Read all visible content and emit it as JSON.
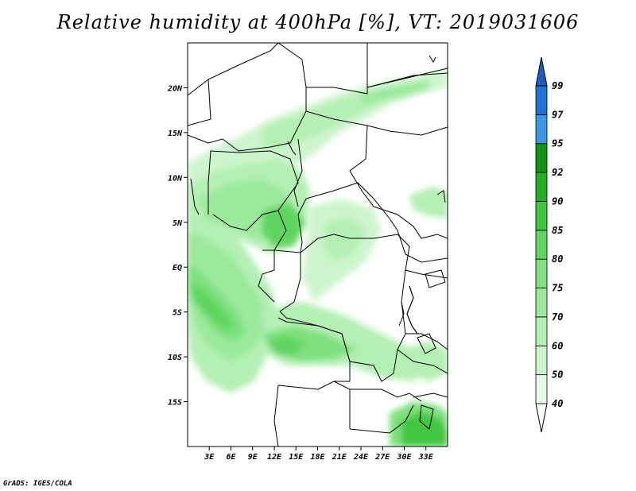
{
  "title": "Relative humidity at 400hPa [%], VT: 2019031606",
  "credit": "GrADS: IGES/COLA",
  "map": {
    "lon_range": [
      0,
      36
    ],
    "lat_range": [
      -20,
      25
    ],
    "lat_ticks": [
      {
        "value": 20,
        "label": "20N"
      },
      {
        "value": 15,
        "label": "15N"
      },
      {
        "value": 10,
        "label": "10N"
      },
      {
        "value": 5,
        "label": "5N"
      },
      {
        "value": 0,
        "label": "EQ"
      },
      {
        "value": -5,
        "label": "5S"
      },
      {
        "value": -10,
        "label": "10S"
      },
      {
        "value": -15,
        "label": "15S"
      }
    ],
    "lon_ticks": [
      {
        "value": 3,
        "label": "3E"
      },
      {
        "value": 6,
        "label": "6E"
      },
      {
        "value": 9,
        "label": "9E"
      },
      {
        "value": 12,
        "label": "12E"
      },
      {
        "value": 15,
        "label": "15E"
      },
      {
        "value": 18,
        "label": "18E"
      },
      {
        "value": 21,
        "label": "21E"
      },
      {
        "value": 24,
        "label": "24E"
      },
      {
        "value": 27,
        "label": "27E"
      },
      {
        "value": 30,
        "label": "30E"
      },
      {
        "value": 33,
        "label": "33E"
      }
    ]
  },
  "colorbar": {
    "levels": [
      {
        "label": "40",
        "color": "#e6fae6"
      },
      {
        "label": "50",
        "color": "#cdf5cd"
      },
      {
        "label": "60",
        "color": "#b4f0b4"
      },
      {
        "label": "70",
        "color": "#9be99b"
      },
      {
        "label": "75",
        "color": "#7ee07e"
      },
      {
        "label": "80",
        "color": "#5fd55f"
      },
      {
        "label": "85",
        "color": "#3fc63f"
      },
      {
        "label": "90",
        "color": "#22b022"
      },
      {
        "label": "92",
        "color": "#109610"
      },
      {
        "label": "95",
        "color": "#3c95e6"
      },
      {
        "label": "97",
        "color": "#1f73d6"
      },
      {
        "label": "99",
        "color": "#1f5cc4"
      }
    ],
    "below_color": "#ffffff"
  }
}
